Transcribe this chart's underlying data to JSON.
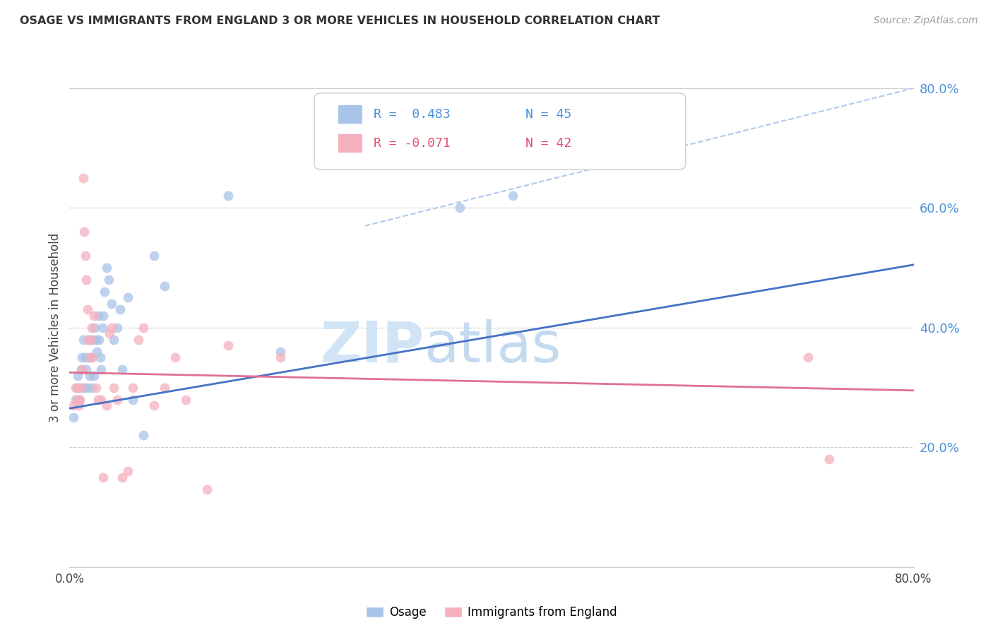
{
  "title": "OSAGE VS IMMIGRANTS FROM ENGLAND 3 OR MORE VEHICLES IN HOUSEHOLD CORRELATION CHART",
  "source": "Source: ZipAtlas.com",
  "ylabel": "3 or more Vehicles in Household",
  "x_min": 0.0,
  "x_max": 0.8,
  "y_min": 0.0,
  "y_max": 0.8,
  "y_ticks": [
    0.2,
    0.4,
    0.6,
    0.8
  ],
  "y_tick_labels": [
    "20.0%",
    "40.0%",
    "60.0%",
    "80.0%"
  ],
  "legend_labels": [
    "Osage",
    "Immigrants from England"
  ],
  "legend_r1": "R =  0.483",
  "legend_n1": "N = 45",
  "legend_r2": "R = -0.071",
  "legend_n2": "N = 42",
  "blue_color": "#a8c4e8",
  "pink_color": "#f5b0be",
  "blue_line_color": "#4472c4",
  "pink_line_color": "#e07090",
  "dashed_line_color": "#b0c8ee",
  "watermark_zip": "ZIP",
  "watermark_atlas": "atlas",
  "blue_scatter_x": [
    0.004,
    0.006,
    0.007,
    0.008,
    0.009,
    0.01,
    0.011,
    0.012,
    0.013,
    0.014,
    0.015,
    0.016,
    0.017,
    0.018,
    0.019,
    0.02,
    0.021,
    0.022,
    0.023,
    0.024,
    0.025,
    0.026,
    0.027,
    0.028,
    0.029,
    0.03,
    0.031,
    0.032,
    0.033,
    0.035,
    0.037,
    0.04,
    0.042,
    0.045,
    0.048,
    0.05,
    0.055,
    0.06,
    0.07,
    0.08,
    0.09,
    0.15,
    0.2,
    0.37,
    0.42
  ],
  "blue_scatter_y": [
    0.25,
    0.28,
    0.3,
    0.32,
    0.28,
    0.3,
    0.33,
    0.35,
    0.38,
    0.3,
    0.35,
    0.33,
    0.3,
    0.38,
    0.32,
    0.35,
    0.3,
    0.38,
    0.32,
    0.4,
    0.38,
    0.36,
    0.42,
    0.38,
    0.35,
    0.33,
    0.4,
    0.42,
    0.46,
    0.5,
    0.48,
    0.44,
    0.38,
    0.4,
    0.43,
    0.33,
    0.45,
    0.28,
    0.22,
    0.52,
    0.47,
    0.62,
    0.36,
    0.6,
    0.62
  ],
  "pink_scatter_x": [
    0.004,
    0.006,
    0.007,
    0.008,
    0.009,
    0.01,
    0.011,
    0.012,
    0.013,
    0.014,
    0.015,
    0.016,
    0.017,
    0.018,
    0.019,
    0.02,
    0.021,
    0.022,
    0.023,
    0.025,
    0.027,
    0.03,
    0.032,
    0.035,
    0.038,
    0.04,
    0.042,
    0.045,
    0.05,
    0.055,
    0.06,
    0.065,
    0.07,
    0.08,
    0.09,
    0.1,
    0.11,
    0.13,
    0.15,
    0.2,
    0.7,
    0.72
  ],
  "pink_scatter_y": [
    0.27,
    0.3,
    0.28,
    0.3,
    0.27,
    0.28,
    0.3,
    0.33,
    0.65,
    0.56,
    0.52,
    0.48,
    0.43,
    0.38,
    0.35,
    0.38,
    0.4,
    0.35,
    0.42,
    0.3,
    0.28,
    0.28,
    0.15,
    0.27,
    0.39,
    0.4,
    0.3,
    0.28,
    0.15,
    0.16,
    0.3,
    0.38,
    0.4,
    0.27,
    0.3,
    0.35,
    0.28,
    0.13,
    0.37,
    0.35,
    0.35,
    0.18
  ],
  "blue_line_x": [
    0.0,
    0.8
  ],
  "blue_line_y_start": 0.265,
  "blue_line_y_end": 0.505,
  "pink_line_x": [
    0.0,
    0.8
  ],
  "pink_line_y_start": 0.325,
  "pink_line_y_end": 0.295,
  "dashed_line_x": [
    0.28,
    0.8
  ],
  "dashed_line_y_start": 0.57,
  "dashed_line_y_end": 0.8
}
